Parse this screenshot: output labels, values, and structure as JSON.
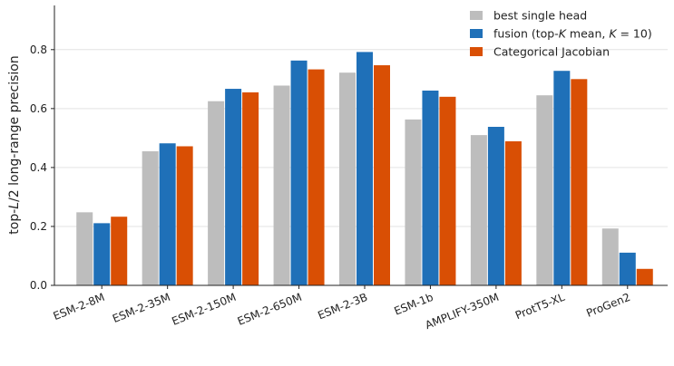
{
  "chart_data": {
    "type": "bar",
    "categories": [
      "ESM-2-8M",
      "ESM-2-35M",
      "ESM-2-150M",
      "ESM-2-650M",
      "ESM-2-3B",
      "ESM-1b",
      "AMPLIFY-350M",
      "ProtT5-XL",
      "ProGen2"
    ],
    "series": [
      {
        "name": "best single head",
        "color": "#bdbdbd",
        "values": [
          0.248,
          0.455,
          0.625,
          0.678,
          0.722,
          0.563,
          0.51,
          0.645,
          0.193
        ]
      },
      {
        "name": "fusion (top-K mean, K = 10)",
        "color": "#1f70b8",
        "values": [
          0.211,
          0.482,
          0.667,
          0.763,
          0.792,
          0.661,
          0.538,
          0.728,
          0.111
        ]
      },
      {
        "name": "Categorical Jacobian",
        "color": "#d94f04",
        "values": [
          0.233,
          0.472,
          0.655,
          0.733,
          0.747,
          0.64,
          0.489,
          0.7,
          0.056
        ]
      }
    ],
    "title": "",
    "xlabel": "",
    "ylabel": "top-L/2 long-range precision",
    "ylim": [
      0,
      0.95
    ],
    "yticks": [
      0.0,
      0.2,
      0.4,
      0.6,
      0.8
    ],
    "ytick_labels": [
      "0.0",
      "0.2",
      "0.4",
      "0.6",
      "0.8"
    ],
    "grid": "horizontal",
    "legend_position": "top-right"
  }
}
